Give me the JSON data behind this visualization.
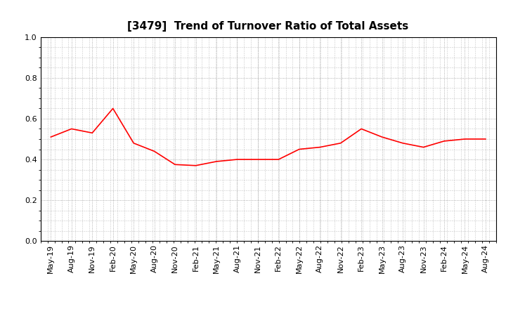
{
  "title": "[3479]  Trend of Turnover Ratio of Total Assets",
  "line_color": "#FF0000",
  "background_color": "#FFFFFF",
  "grid_color": "#999999",
  "ylim": [
    0.0,
    1.0
  ],
  "yticks": [
    0.0,
    0.2,
    0.4,
    0.6,
    0.8,
    1.0
  ],
  "x_labels": [
    "May-19",
    "Aug-19",
    "Nov-19",
    "Feb-20",
    "May-20",
    "Aug-20",
    "Nov-20",
    "Feb-21",
    "May-21",
    "Aug-21",
    "Nov-21",
    "Feb-22",
    "May-22",
    "Aug-22",
    "Nov-22",
    "Feb-23",
    "May-23",
    "Aug-23",
    "Nov-23",
    "Feb-24",
    "May-24",
    "Aug-24"
  ],
  "values": [
    0.51,
    0.55,
    0.53,
    0.65,
    0.48,
    0.44,
    0.375,
    0.37,
    0.39,
    0.4,
    0.4,
    0.4,
    0.45,
    0.46,
    0.48,
    0.55,
    0.51,
    0.48,
    0.46,
    0.49,
    0.5,
    0.5
  ],
  "title_fontsize": 11,
  "tick_fontsize": 8,
  "figsize": [
    7.2,
    4.4
  ],
  "dpi": 100
}
